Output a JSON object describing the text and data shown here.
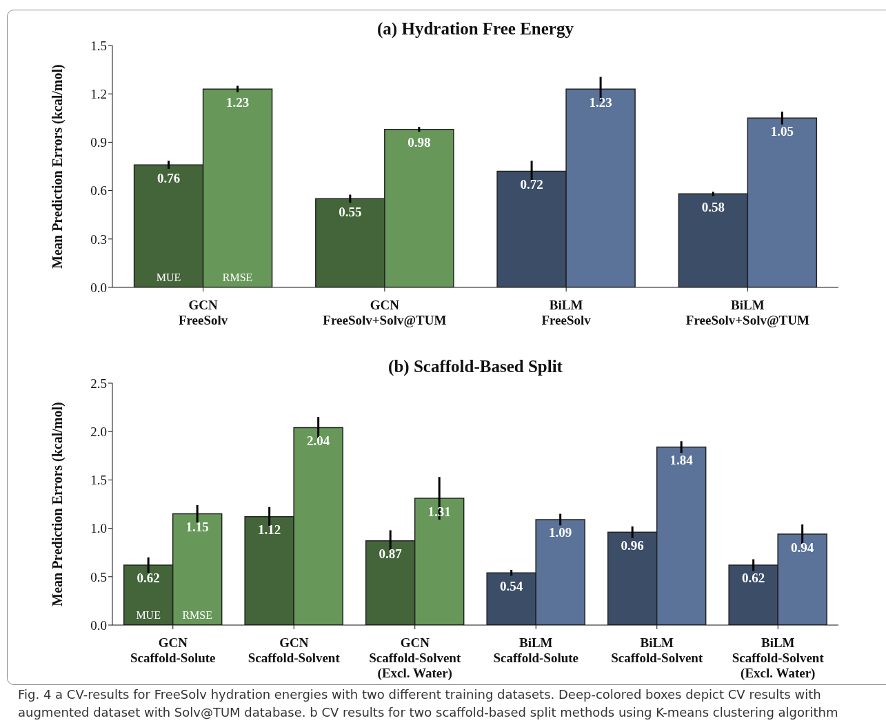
{
  "chart_data": [
    {
      "type": "bar",
      "title": "(a) Hydration Free Energy",
      "ylabel": "Mean Prediction Errors (kcal/mol)",
      "categories": [
        "GCN\nFreeSolv",
        "GCN\nFreeSolv+Solv@TUM",
        "BiLM\nFreeSolv",
        "BiLM\nFreeSolv+Solv@TUM"
      ],
      "series": [
        {
          "name": "MUE",
          "colors": [
            "#44643a",
            "#44643a",
            "#3c4d68",
            "#3c4d68"
          ],
          "values": [
            0.76,
            0.55,
            0.72,
            0.58
          ],
          "errors": [
            0.025,
            0.025,
            0.065,
            0.013
          ]
        },
        {
          "name": "RMSE",
          "colors": [
            "#67985a",
            "#67985a",
            "#5b7299",
            "#5b7299"
          ],
          "values": [
            1.23,
            0.98,
            1.23,
            1.05
          ],
          "errors": [
            0.02,
            0.015,
            0.075,
            0.04
          ]
        }
      ],
      "data_labels": true,
      "ylim": [
        0,
        1.5
      ],
      "yticks": [
        {
          "value": 0,
          "label": "0.0"
        },
        {
          "value": 0.3,
          "label": "0.3"
        },
        {
          "value": 0.6,
          "label": "0.6"
        },
        {
          "value": 0.9,
          "label": "0.9"
        },
        {
          "value": 1.2,
          "label": "1.2"
        },
        {
          "value": 1.5,
          "label": "1.5"
        }
      ],
      "legend": false,
      "grid": false
    },
    {
      "type": "bar",
      "title": "(b) Scaffold-Based Split",
      "ylabel": "Mean Prediction Errors (kcal/mol)",
      "categories": [
        "GCN\nScaffold-Solute",
        "GCN\nScaffold-Solvent",
        "GCN\nScaffold-Solvent\n(Excl. Water)",
        "BiLM\nScaffold-Solute",
        "BiLM\nScaffold-Solvent",
        "BiLM\nScaffold-Solvent\n(Excl. Water)"
      ],
      "series": [
        {
          "name": "MUE",
          "colors": [
            "#44643a",
            "#44643a",
            "#44643a",
            "#3c4d68",
            "#3c4d68",
            "#3c4d68"
          ],
          "values": [
            0.62,
            1.12,
            0.87,
            0.54,
            0.96,
            0.62
          ],
          "errors": [
            0.08,
            0.1,
            0.11,
            0.03,
            0.06,
            0.06
          ]
        },
        {
          "name": "RMSE",
          "colors": [
            "#67985a",
            "#67985a",
            "#67985a",
            "#5b7299",
            "#5b7299",
            "#5b7299"
          ],
          "values": [
            1.15,
            2.04,
            1.31,
            1.09,
            1.84,
            0.94
          ],
          "errors": [
            0.09,
            0.11,
            0.22,
            0.06,
            0.06,
            0.1
          ]
        }
      ],
      "data_labels": true,
      "ylim": [
        0,
        2.5
      ],
      "yticks": [
        {
          "value": 0,
          "label": "0.0"
        },
        {
          "value": 0.5,
          "label": "0.5"
        },
        {
          "value": 1,
          "label": "1.0"
        },
        {
          "value": 1.5,
          "label": "1.5"
        },
        {
          "value": 2,
          "label": "2.0"
        },
        {
          "value": 2.5,
          "label": "2.5"
        }
      ],
      "legend": false,
      "grid": false,
      "annotations": [
        "Fig. 4 a CV-results for FreeSolv hydration energies with two different training datasets. Deep-colored boxes depict CV results with augmented dataset with Solv@TUM database. b CV results for two scaffold-based split methods using K-means clustering algorithm"
      ]
    }
  ]
}
